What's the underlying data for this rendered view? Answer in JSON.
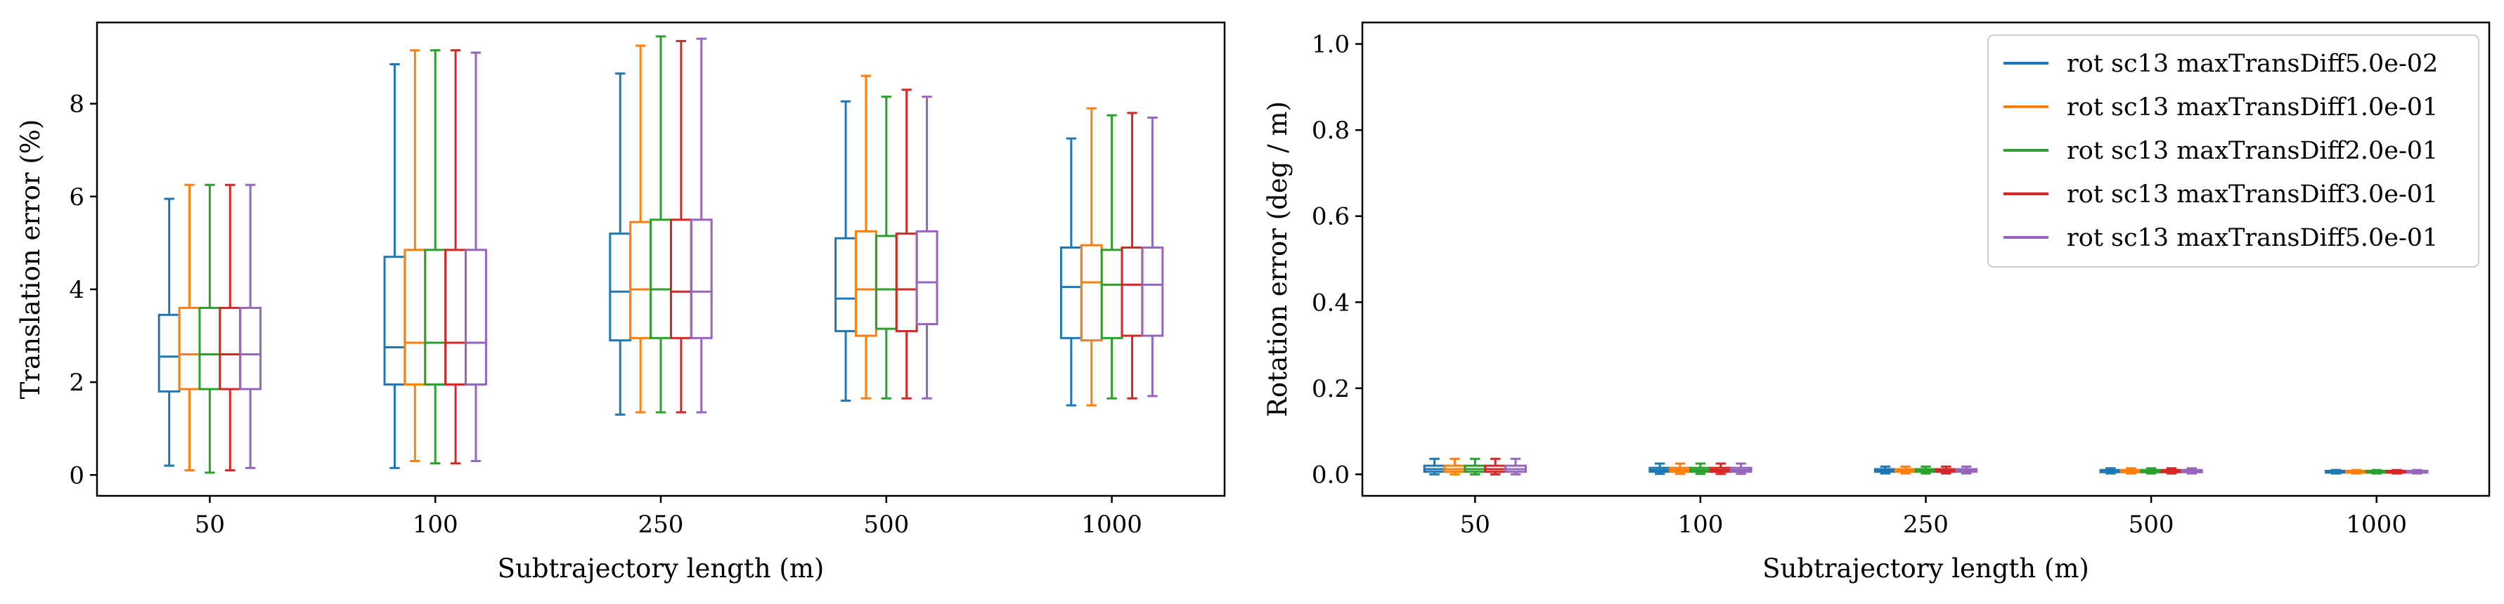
{
  "series_colors": [
    "#1f77b4",
    "#ff7f0e",
    "#2ca02c",
    "#d62728",
    "#9467bd"
  ],
  "chart_data": [
    {
      "type": "box",
      "ylabel": "Translation error (%)",
      "xlabel": "Subtrajectory length (m)",
      "categories": [
        "50",
        "100",
        "250",
        "500",
        "1000"
      ],
      "ylim": [
        -0.45,
        9.75
      ],
      "yticks": [
        0,
        2,
        4,
        6,
        8
      ],
      "ytick_labels": [
        "0",
        "2",
        "4",
        "6",
        "8"
      ],
      "grid": false,
      "series": [
        {
          "color_index": 0,
          "boxes": [
            {
              "whislo": 0.2,
              "q1": 1.8,
              "med": 2.55,
              "q3": 3.45,
              "whishi": 5.95
            },
            {
              "whislo": 0.15,
              "q1": 1.95,
              "med": 2.75,
              "q3": 4.7,
              "whishi": 8.85
            },
            {
              "whislo": 1.3,
              "q1": 2.9,
              "med": 3.95,
              "q3": 5.2,
              "whishi": 8.65
            },
            {
              "whislo": 1.6,
              "q1": 3.1,
              "med": 3.8,
              "q3": 5.1,
              "whishi": 8.05
            },
            {
              "whislo": 1.5,
              "q1": 2.95,
              "med": 4.05,
              "q3": 4.9,
              "whishi": 7.25
            }
          ]
        },
        {
          "color_index": 1,
          "boxes": [
            {
              "whislo": 0.1,
              "q1": 1.85,
              "med": 2.6,
              "q3": 3.6,
              "whishi": 6.25
            },
            {
              "whislo": 0.3,
              "q1": 1.95,
              "med": 2.85,
              "q3": 4.85,
              "whishi": 9.15
            },
            {
              "whislo": 1.35,
              "q1": 2.95,
              "med": 4.0,
              "q3": 5.45,
              "whishi": 9.25
            },
            {
              "whislo": 1.65,
              "q1": 3.0,
              "med": 4.0,
              "q3": 5.25,
              "whishi": 8.6
            },
            {
              "whislo": 1.5,
              "q1": 2.9,
              "med": 4.15,
              "q3": 4.95,
              "whishi": 7.9
            }
          ]
        },
        {
          "color_index": 2,
          "boxes": [
            {
              "whislo": 0.05,
              "q1": 1.85,
              "med": 2.6,
              "q3": 3.6,
              "whishi": 6.25
            },
            {
              "whislo": 0.25,
              "q1": 1.95,
              "med": 2.85,
              "q3": 4.85,
              "whishi": 9.15
            },
            {
              "whislo": 1.35,
              "q1": 2.95,
              "med": 4.0,
              "q3": 5.5,
              "whishi": 9.45
            },
            {
              "whislo": 1.65,
              "q1": 3.15,
              "med": 4.0,
              "q3": 5.15,
              "whishi": 8.15
            },
            {
              "whislo": 1.65,
              "q1": 2.95,
              "med": 4.1,
              "q3": 4.85,
              "whishi": 7.75
            }
          ]
        },
        {
          "color_index": 3,
          "boxes": [
            {
              "whislo": 0.1,
              "q1": 1.85,
              "med": 2.6,
              "q3": 3.6,
              "whishi": 6.25
            },
            {
              "whislo": 0.25,
              "q1": 1.95,
              "med": 2.85,
              "q3": 4.85,
              "whishi": 9.15
            },
            {
              "whislo": 1.35,
              "q1": 2.95,
              "med": 3.95,
              "q3": 5.5,
              "whishi": 9.35
            },
            {
              "whislo": 1.65,
              "q1": 3.1,
              "med": 4.0,
              "q3": 5.2,
              "whishi": 8.3
            },
            {
              "whislo": 1.65,
              "q1": 3.0,
              "med": 4.1,
              "q3": 4.9,
              "whishi": 7.8
            }
          ]
        },
        {
          "color_index": 4,
          "boxes": [
            {
              "whislo": 0.15,
              "q1": 1.85,
              "med": 2.6,
              "q3": 3.6,
              "whishi": 6.25
            },
            {
              "whislo": 0.3,
              "q1": 1.95,
              "med": 2.85,
              "q3": 4.85,
              "whishi": 9.1
            },
            {
              "whislo": 1.35,
              "q1": 2.95,
              "med": 3.95,
              "q3": 5.5,
              "whishi": 9.4
            },
            {
              "whislo": 1.65,
              "q1": 3.25,
              "med": 4.15,
              "q3": 5.25,
              "whishi": 8.15
            },
            {
              "whislo": 1.7,
              "q1": 3.0,
              "med": 4.1,
              "q3": 4.9,
              "whishi": 7.7
            }
          ]
        }
      ]
    },
    {
      "type": "box",
      "ylabel": "Rotation error (deg / m)",
      "xlabel": "Subtrajectory length (m)",
      "categories": [
        "50",
        "100",
        "250",
        "500",
        "1000"
      ],
      "ylim": [
        -0.05,
        1.05
      ],
      "yticks": [
        0.0,
        0.2,
        0.4,
        0.6,
        0.8,
        1.0
      ],
      "ytick_labels": [
        "0.0",
        "0.2",
        "0.4",
        "0.6",
        "0.8",
        "1.0"
      ],
      "grid": false,
      "legend": {
        "placement": "top-right",
        "entries": [
          "rot sc13 maxTransDiff5.0e-02",
          "rot sc13 maxTransDiff1.0e-01",
          "rot sc13 maxTransDiff2.0e-01",
          "rot sc13 maxTransDiff3.0e-01",
          "rot sc13 maxTransDiff5.0e-01"
        ]
      },
      "series": [
        {
          "color_index": 0,
          "boxes": [
            {
              "whislo": 0.0,
              "q1": 0.006,
              "med": 0.012,
              "q3": 0.02,
              "whishi": 0.036
            },
            {
              "whislo": 0.001,
              "q1": 0.006,
              "med": 0.01,
              "q3": 0.015,
              "whishi": 0.025
            },
            {
              "whislo": 0.002,
              "q1": 0.006,
              "med": 0.009,
              "q3": 0.012,
              "whishi": 0.018
            },
            {
              "whislo": 0.002,
              "q1": 0.005,
              "med": 0.008,
              "q3": 0.01,
              "whishi": 0.014
            },
            {
              "whislo": 0.002,
              "q1": 0.004,
              "med": 0.006,
              "q3": 0.008,
              "whishi": 0.01
            }
          ]
        },
        {
          "color_index": 1,
          "boxes": [
            {
              "whislo": 0.0,
              "q1": 0.006,
              "med": 0.012,
              "q3": 0.02,
              "whishi": 0.036
            },
            {
              "whislo": 0.001,
              "q1": 0.006,
              "med": 0.01,
              "q3": 0.015,
              "whishi": 0.025
            },
            {
              "whislo": 0.002,
              "q1": 0.006,
              "med": 0.009,
              "q3": 0.012,
              "whishi": 0.018
            },
            {
              "whislo": 0.002,
              "q1": 0.005,
              "med": 0.008,
              "q3": 0.01,
              "whishi": 0.014
            },
            {
              "whislo": 0.002,
              "q1": 0.004,
              "med": 0.006,
              "q3": 0.008,
              "whishi": 0.01
            }
          ]
        },
        {
          "color_index": 2,
          "boxes": [
            {
              "whislo": 0.0,
              "q1": 0.006,
              "med": 0.012,
              "q3": 0.02,
              "whishi": 0.036
            },
            {
              "whislo": 0.001,
              "q1": 0.006,
              "med": 0.01,
              "q3": 0.015,
              "whishi": 0.025
            },
            {
              "whislo": 0.002,
              "q1": 0.006,
              "med": 0.009,
              "q3": 0.012,
              "whishi": 0.018
            },
            {
              "whislo": 0.002,
              "q1": 0.005,
              "med": 0.008,
              "q3": 0.01,
              "whishi": 0.014
            },
            {
              "whislo": 0.002,
              "q1": 0.004,
              "med": 0.006,
              "q3": 0.008,
              "whishi": 0.01
            }
          ]
        },
        {
          "color_index": 3,
          "boxes": [
            {
              "whislo": 0.0,
              "q1": 0.006,
              "med": 0.012,
              "q3": 0.02,
              "whishi": 0.036
            },
            {
              "whislo": 0.001,
              "q1": 0.006,
              "med": 0.01,
              "q3": 0.015,
              "whishi": 0.025
            },
            {
              "whislo": 0.002,
              "q1": 0.006,
              "med": 0.009,
              "q3": 0.012,
              "whishi": 0.018
            },
            {
              "whislo": 0.002,
              "q1": 0.005,
              "med": 0.008,
              "q3": 0.01,
              "whishi": 0.014
            },
            {
              "whislo": 0.002,
              "q1": 0.004,
              "med": 0.006,
              "q3": 0.008,
              "whishi": 0.01
            }
          ]
        },
        {
          "color_index": 4,
          "boxes": [
            {
              "whislo": 0.0,
              "q1": 0.006,
              "med": 0.012,
              "q3": 0.02,
              "whishi": 0.036
            },
            {
              "whislo": 0.001,
              "q1": 0.006,
              "med": 0.01,
              "q3": 0.015,
              "whishi": 0.025
            },
            {
              "whislo": 0.002,
              "q1": 0.006,
              "med": 0.009,
              "q3": 0.012,
              "whishi": 0.018
            },
            {
              "whislo": 0.002,
              "q1": 0.005,
              "med": 0.008,
              "q3": 0.01,
              "whishi": 0.014
            },
            {
              "whislo": 0.002,
              "q1": 0.004,
              "med": 0.006,
              "q3": 0.008,
              "whishi": 0.01
            }
          ]
        }
      ]
    }
  ]
}
